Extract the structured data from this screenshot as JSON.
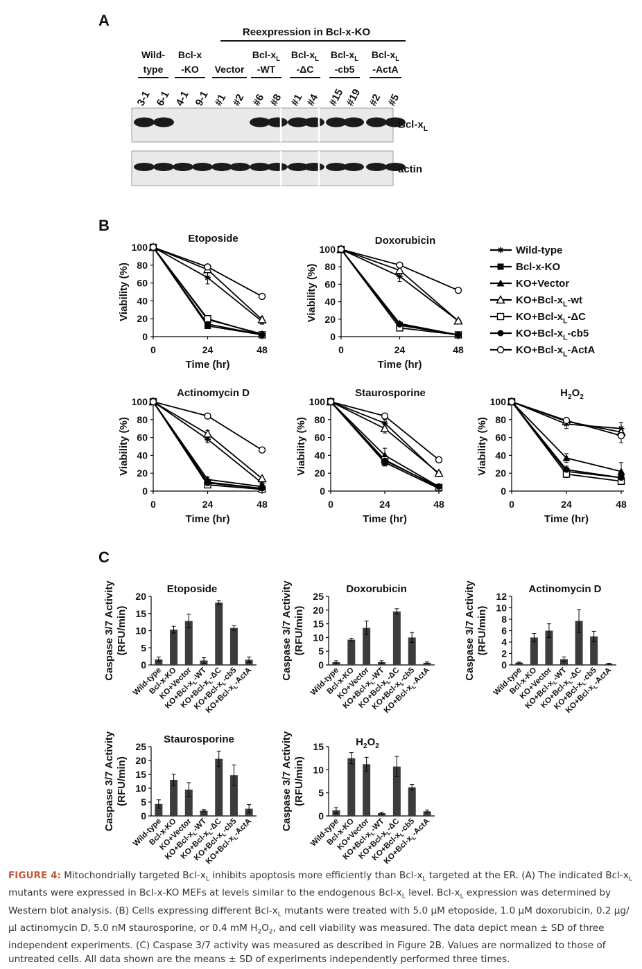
{
  "panel_letters": {
    "a": "A",
    "b": "B",
    "c": "C"
  },
  "blot": {
    "header": "Reexpression in Bcl-x-KO",
    "groups": [
      {
        "line1": "Wild-",
        "line2": "type",
        "lanes": [
          "3-1",
          "6-1"
        ]
      },
      {
        "line1": "Bcl-x",
        "line2": "-KO",
        "lanes": [
          "4-1",
          "9-1"
        ]
      },
      {
        "line1": "",
        "line2": "Vector",
        "lanes": [
          "#1",
          "#2"
        ]
      },
      {
        "line1": "Bcl-x",
        "sub1": "L",
        "line2": "-WT",
        "lanes": [
          "#6",
          "#8"
        ]
      },
      {
        "line1": "Bcl-x",
        "sub1": "L",
        "line2": "-ΔC",
        "lanes": [
          "#1",
          "#4"
        ]
      },
      {
        "line1": "Bcl-x",
        "sub1": "L",
        "line2": "-cb5",
        "lanes": [
          "#15",
          "#19"
        ]
      },
      {
        "line1": "Bcl-x",
        "sub1": "L",
        "line2": "-ActA",
        "lanes": [
          "#2",
          "#5"
        ]
      }
    ],
    "rows": [
      {
        "label": "Bcl-x",
        "label_sub": "L",
        "bands": [
          1,
          1,
          0,
          0,
          0,
          0,
          1,
          1,
          1,
          1,
          1,
          1,
          1,
          1
        ]
      },
      {
        "label": "actin",
        "label_sub": "",
        "bands": [
          1,
          1,
          1,
          1,
          1,
          1,
          1,
          1,
          1,
          1,
          1,
          1,
          1,
          1
        ]
      }
    ]
  },
  "legend": [
    {
      "name": "Wild-type",
      "marker": "star"
    },
    {
      "name": "Bcl-x-KO",
      "marker": "square-filled"
    },
    {
      "name": "KO+Vector",
      "marker": "triangle-filled"
    },
    {
      "name": "KO+Bcl-x",
      "sub": "L",
      "suffix": "-wt",
      "marker": "triangle-open"
    },
    {
      "name": "KO+Bcl-x",
      "sub": "L",
      "suffix": "-ΔC",
      "marker": "square-open"
    },
    {
      "name": "KO+Bcl-x",
      "sub": "L",
      "suffix": "-cb5",
      "marker": "circle-filled"
    },
    {
      "name": "KO+Bcl-x",
      "sub": "L",
      "suffix": "-ActA",
      "marker": "circle-open"
    }
  ],
  "viability_axes": {
    "ylabel": "Viability (%)",
    "xlabel": "Time (hr)",
    "x": [
      0,
      24,
      48
    ],
    "yticks": [
      0,
      20,
      40,
      60,
      80,
      100
    ]
  },
  "caspase_axes": {
    "ylabel1": "Caspase 3/7 Activity",
    "ylabel2": "(RFU/min)",
    "categories": [
      "Wild-type",
      "Bcl-x-KO",
      "KO+Vector",
      "KO+Bcl-x|-WT",
      "KO+Bcl-x|-ΔC",
      "KO+Bcl-x|-cb5",
      "KO+Bcl-x|-ActA"
    ]
  },
  "chart_data": [
    {
      "type": "line",
      "title": "Etoposide",
      "x": [
        0,
        24,
        48
      ],
      "xlabel": "Time (hr)",
      "ylabel": "Viability (%)",
      "ylim": [
        0,
        100
      ],
      "series": [
        {
          "name": "Wild-type",
          "values": [
            100,
            66,
            17
          ],
          "err": [
            0,
            7,
            3
          ]
        },
        {
          "name": "Bcl-x-KO",
          "values": [
            100,
            12,
            2
          ],
          "err": [
            0,
            2,
            1
          ]
        },
        {
          "name": "KO+Vector",
          "values": [
            100,
            19,
            3
          ],
          "err": [
            0,
            3,
            1
          ]
        },
        {
          "name": "KO+Bcl-xL-wt",
          "values": [
            100,
            75,
            19
          ],
          "err": [
            0,
            3,
            3
          ]
        },
        {
          "name": "KO+Bcl-xL-ΔC",
          "values": [
            100,
            20,
            2
          ],
          "err": [
            0,
            3,
            1
          ]
        },
        {
          "name": "KO+Bcl-xL-cb5",
          "values": [
            100,
            14,
            2
          ],
          "err": [
            0,
            2,
            1
          ]
        },
        {
          "name": "KO+Bcl-xL-ActA",
          "values": [
            100,
            78,
            45
          ],
          "err": [
            0,
            3,
            1
          ]
        }
      ]
    },
    {
      "type": "line",
      "title": "Doxorubicin",
      "x": [
        0,
        24,
        48
      ],
      "xlabel": "Time (hr)",
      "ylabel": "Viability (%)",
      "ylim": [
        0,
        100
      ],
      "series": [
        {
          "name": "Wild-type",
          "values": [
            100,
            69,
            18
          ],
          "err": [
            0,
            6,
            2
          ]
        },
        {
          "name": "Bcl-x-KO",
          "values": [
            100,
            13,
            2
          ],
          "err": [
            0,
            2,
            1
          ]
        },
        {
          "name": "KO+Vector",
          "values": [
            100,
            15,
            2
          ],
          "err": [
            0,
            2,
            1
          ]
        },
        {
          "name": "KO+Bcl-xL-wt",
          "values": [
            100,
            76,
            18
          ],
          "err": [
            0,
            3,
            2
          ]
        },
        {
          "name": "KO+Bcl-xL-ΔC",
          "values": [
            100,
            10,
            2
          ],
          "err": [
            0,
            2,
            1
          ]
        },
        {
          "name": "KO+Bcl-xL-cb5",
          "values": [
            100,
            14,
            2
          ],
          "err": [
            0,
            2,
            1
          ]
        },
        {
          "name": "KO+Bcl-xL-ActA",
          "values": [
            100,
            82,
            53
          ],
          "err": [
            0,
            2,
            1
          ]
        }
      ]
    },
    {
      "type": "line",
      "title": "Actinomycin D",
      "x": [
        0,
        24,
        48
      ],
      "xlabel": "Time (hr)",
      "ylabel": "Viability (%)",
      "ylim": [
        0,
        100
      ],
      "series": [
        {
          "name": "Wild-type",
          "values": [
            100,
            58,
            9
          ],
          "err": [
            0,
            4,
            2
          ]
        },
        {
          "name": "Bcl-x-KO",
          "values": [
            100,
            10,
            3
          ],
          "err": [
            0,
            3,
            1
          ]
        },
        {
          "name": "KO+Vector",
          "values": [
            100,
            13,
            5
          ],
          "err": [
            0,
            3,
            1
          ]
        },
        {
          "name": "KO+Bcl-xL-wt",
          "values": [
            100,
            64,
            14
          ],
          "err": [
            0,
            4,
            2
          ]
        },
        {
          "name": "KO+Bcl-xL-ΔC",
          "values": [
            100,
            7,
            2
          ],
          "err": [
            0,
            2,
            1
          ]
        },
        {
          "name": "KO+Bcl-xL-cb5",
          "values": [
            100,
            9,
            3
          ],
          "err": [
            0,
            2,
            1
          ]
        },
        {
          "name": "KO+Bcl-xL-ActA",
          "values": [
            100,
            84,
            46
          ],
          "err": [
            0,
            2,
            1
          ]
        }
      ]
    },
    {
      "type": "line",
      "title": "Staurosporine",
      "x": [
        0,
        24,
        48
      ],
      "xlabel": "Time (hr)",
      "ylabel": "Viability (%)",
      "ylim": [
        0,
        100
      ],
      "series": [
        {
          "name": "Wild-type",
          "values": [
            100,
            76,
            19
          ],
          "err": [
            0,
            4,
            2
          ]
        },
        {
          "name": "Bcl-x-KO",
          "values": [
            100,
            32,
            3
          ],
          "err": [
            0,
            4,
            1
          ]
        },
        {
          "name": "KO+Vector",
          "values": [
            100,
            40,
            5
          ],
          "err": [
            0,
            8,
            2
          ]
        },
        {
          "name": "KO+Bcl-xL-wt",
          "values": [
            100,
            70,
            20
          ],
          "err": [
            0,
            5,
            2
          ]
        },
        {
          "name": "KO+Bcl-xL-ΔC",
          "values": [
            100,
            35,
            4
          ],
          "err": [
            0,
            4,
            1
          ]
        },
        {
          "name": "KO+Bcl-xL-cb5",
          "values": [
            100,
            34,
            5
          ],
          "err": [
            0,
            3,
            1
          ]
        },
        {
          "name": "KO+Bcl-xL-ActA",
          "values": [
            100,
            84,
            35
          ],
          "err": [
            0,
            2,
            1
          ]
        }
      ]
    },
    {
      "type": "line",
      "title": "H2O2",
      "x": [
        0,
        24,
        48
      ],
      "xlabel": "Time (hr)",
      "ylabel": "Viability (%)",
      "ylim": [
        0,
        100
      ],
      "series": [
        {
          "name": "Wild-type",
          "values": [
            100,
            75,
            70
          ],
          "err": [
            0,
            5,
            7
          ]
        },
        {
          "name": "Bcl-x-KO",
          "values": [
            100,
            22,
            15
          ],
          "err": [
            0,
            4,
            3
          ]
        },
        {
          "name": "KO+Vector",
          "values": [
            100,
            37,
            22
          ],
          "err": [
            0,
            5,
            10
          ]
        },
        {
          "name": "KO+Bcl-xL-wt",
          "values": [
            100,
            78,
            66
          ],
          "err": [
            0,
            3,
            4
          ]
        },
        {
          "name": "KO+Bcl-xL-ΔC",
          "values": [
            100,
            19,
            11
          ],
          "err": [
            0,
            4,
            3
          ]
        },
        {
          "name": "KO+Bcl-xL-cb5",
          "values": [
            100,
            24,
            15
          ],
          "err": [
            0,
            4,
            4
          ]
        },
        {
          "name": "KO+Bcl-xL-ActA",
          "values": [
            100,
            79,
            62
          ],
          "err": [
            0,
            3,
            8
          ]
        }
      ]
    },
    {
      "type": "bar",
      "title": "Etoposide",
      "ylabel": "Caspase 3/7 Activity (RFU/min)",
      "ylim": [
        0,
        20
      ],
      "yticks": [
        0,
        5,
        10,
        15,
        20
      ],
      "categories": [
        "Wild-type",
        "Bcl-x-KO",
        "KO+Vector",
        "KO+Bcl-xL-WT",
        "KO+Bcl-xL-ΔC",
        "KO+Bcl-xL-cb5",
        "KO+Bcl-xL-ActA"
      ],
      "values": [
        1.6,
        10.3,
        12.8,
        1.3,
        18.2,
        10.8,
        1.5
      ],
      "err": [
        0.7,
        1.0,
        2.0,
        0.8,
        0.6,
        0.7,
        0.8
      ]
    },
    {
      "type": "bar",
      "title": "Doxorubicin",
      "ylabel": "Caspase 3/7 Activity (RFU/min)",
      "ylim": [
        0,
        25
      ],
      "yticks": [
        0,
        5,
        10,
        15,
        20,
        25
      ],
      "categories": [
        "Wild-type",
        "Bcl-x-KO",
        "KO+Vector",
        "KO+Bcl-xL-WT",
        "KO+Bcl-xL-ΔC",
        "KO+Bcl-xL-cb5",
        "KO+Bcl-xL-ActA"
      ],
      "values": [
        1.0,
        9.2,
        13.5,
        1.0,
        19.5,
        10.0,
        0.8
      ],
      "err": [
        0.5,
        0.5,
        2.5,
        0.5,
        1.0,
        1.8,
        0.3
      ]
    },
    {
      "type": "bar",
      "title": "Actinomycin D",
      "ylabel": "Caspase 3/7 Activity (RFU/min)",
      "ylim": [
        0,
        12
      ],
      "yticks": [
        0,
        2,
        4,
        6,
        8,
        10,
        12
      ],
      "categories": [
        "Wild-type",
        "Bcl-x-KO",
        "KO+Vector",
        "KO+Bcl-xL-WT",
        "KO+Bcl-xL-ΔC",
        "KO+Bcl-xL-cb5",
        "KO+Bcl-xL-ActA"
      ],
      "values": [
        0.4,
        4.8,
        6.0,
        1.0,
        7.7,
        5.0,
        0.2
      ],
      "err": [
        0.1,
        0.7,
        1.2,
        0.4,
        2.0,
        0.9,
        0.1
      ]
    },
    {
      "type": "bar",
      "title": "Staurosporine",
      "ylabel": "Caspase 3/7 Activity (RFU/min)",
      "ylim": [
        0,
        25
      ],
      "yticks": [
        0,
        5,
        10,
        15,
        20,
        25
      ],
      "categories": [
        "Wild-type",
        "Bcl-x-KO",
        "KO+Vector",
        "KO+Bcl-xL-WT",
        "KO+Bcl-xL-ΔC",
        "KO+Bcl-xL-cb5",
        "KO+Bcl-xL-ActA"
      ],
      "values": [
        4.3,
        13.0,
        9.5,
        1.9,
        20.6,
        14.7,
        2.6
      ],
      "err": [
        1.5,
        2.0,
        2.5,
        0.4,
        2.8,
        3.7,
        1.5
      ]
    },
    {
      "type": "bar",
      "title": "H2O2",
      "ylabel": "Caspase 3/7 Activity (RFU/min)",
      "ylim": [
        0,
        15
      ],
      "yticks": [
        0,
        5,
        10,
        15
      ],
      "categories": [
        "Wild-type",
        "Bcl-x-KO",
        "KO+Vector",
        "KO+Bcl-xL-WT",
        "KO+Bcl-xL-ΔC",
        "KO+Bcl-xL-cb5",
        "KO+Bcl-xL-ActA"
      ],
      "values": [
        1.2,
        12.5,
        11.2,
        0.6,
        10.7,
        6.2,
        1.0
      ],
      "err": [
        0.6,
        1.2,
        1.5,
        0.2,
        2.2,
        0.6,
        0.3
      ]
    }
  ],
  "caption": {
    "label": "FIGURE 4:",
    "text": " Mitochondrially targeted Bcl-xL inhibits apoptosis more efficiently than Bcl-xL targeted at the ER. (A) The indicated Bcl-xL mutants were expressed in Bcl-x-KO MEFs at levels similar to the endogenous Bcl-xL level. Bcl-xL expression was determined by Western blot analysis. (B) Cells expressing different Bcl-xL mutants were treated with 5.0 μM etoposide, 1.0 μM doxorubicin, 0.2 μg/μl actinomycin D, 5.0 nM staurosporine, or 0.4 mM H2O2, and cell viability was measured. The data depict mean ± SD of three independent experiments. (C) Caspase 3/7 activity was measured as described in Figure 2B. Values are normalized to those of untreated cells. All data shown are the means ± SD of experiments independently performed three times."
  }
}
